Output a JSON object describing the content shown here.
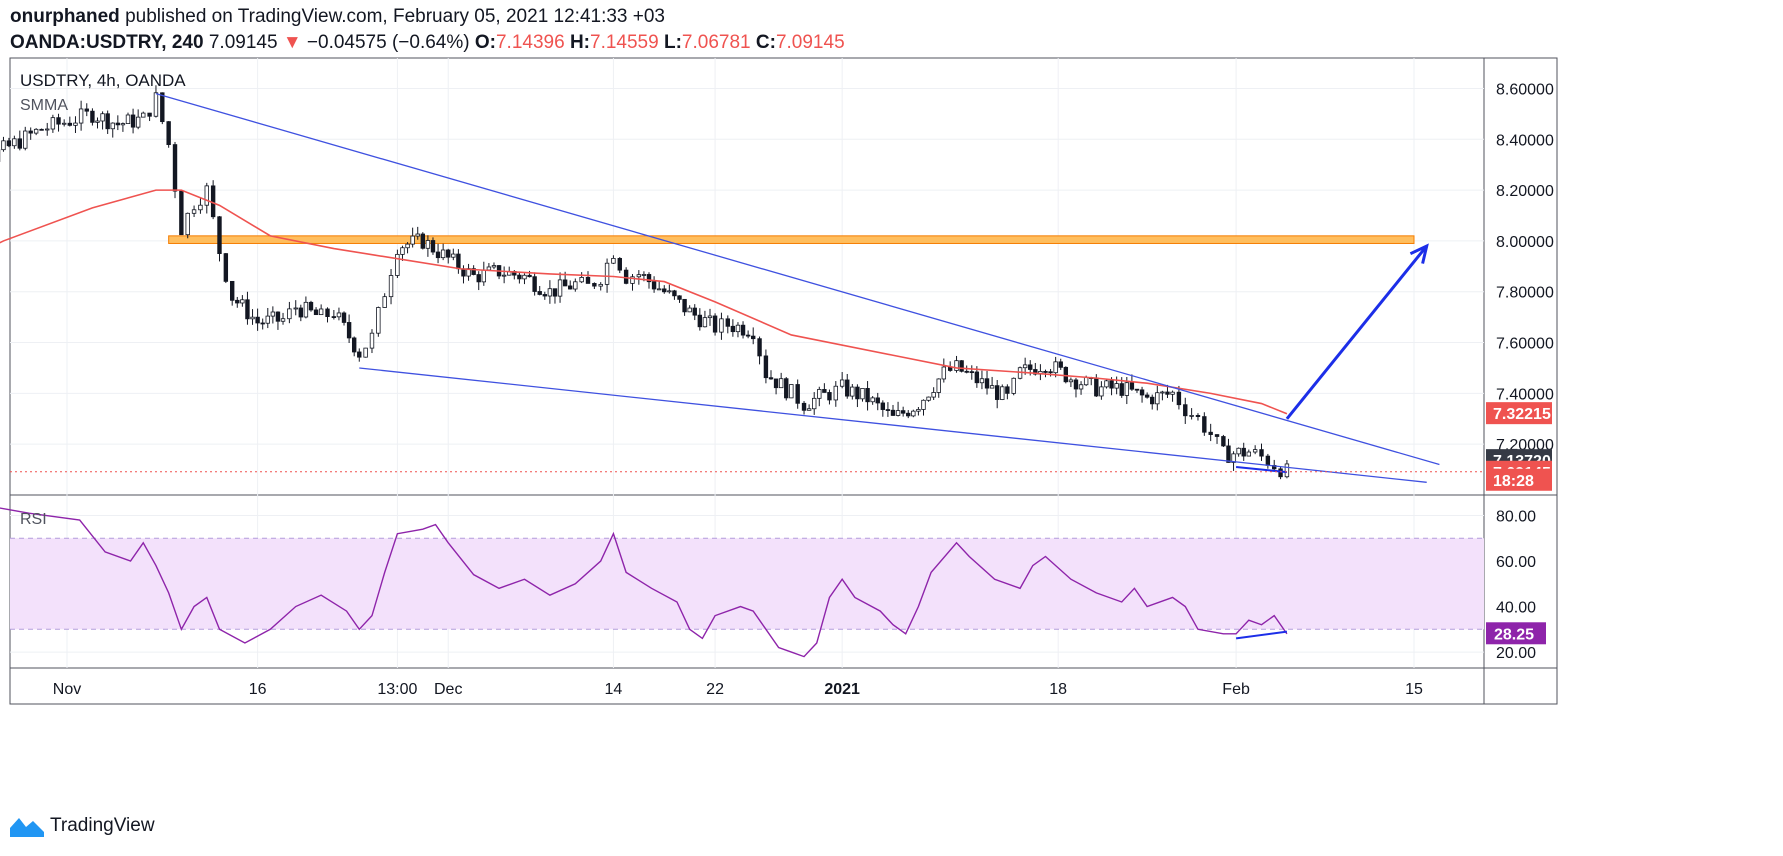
{
  "header": {
    "author": "onurphaned",
    "published_text": "published on TradingView.com, February 05, 2021 12:41:33 +03",
    "symbol": "OANDA:USDTRY, 240",
    "last": "7.09145",
    "change_arrow": "▼",
    "change": "−0.04575 (−0.64%)",
    "o_label": "O:",
    "o_value": "7.14396",
    "h_label": "H:",
    "h_value": "7.14559",
    "l_label": "L:",
    "l_value": "7.06781",
    "c_label": "C:",
    "c_value": "7.09145"
  },
  "legend": {
    "symbol_line": "USDTRY, 4h, OANDA",
    "indicator": "SMMA",
    "rsi_label": "RSI"
  },
  "footer": {
    "brand": "TradingView",
    "logo_icon": "tradingview-logo-icon"
  },
  "colors": {
    "up": "#131722",
    "down": "#131722",
    "smma": "#ef5350",
    "trendline": "#3f51e0",
    "arrow": "#1c2ee8",
    "resistance_fill": "#ffb74d",
    "resistance_border": "#f57c00",
    "rsi": "#8e24aa",
    "rsi_band": "#f3e1fb",
    "badge_red": "#ef5350",
    "badge_dark": "#363a45"
  },
  "chart_data": [
    {
      "type": "candlestick",
      "title": "USDTRY, 4h, OANDA",
      "ylim": [
        7.0,
        8.72
      ],
      "y_ticks": [
        "8.60000",
        "8.40000",
        "8.20000",
        "8.00000",
        "7.80000",
        "7.60000",
        "7.40000",
        "7.20000"
      ],
      "x_tick_labels": [
        "Nov",
        "16",
        "13:00",
        "Dec",
        "14",
        "22",
        "2021",
        "18",
        "Feb",
        "15"
      ],
      "x_tick_bold": [
        "2021"
      ],
      "price_path": [
        [
          "2020-10-22",
          8.15
        ],
        [
          "2020-10-24",
          8.27
        ],
        [
          "2020-10-27",
          8.36
        ],
        [
          "2020-10-30",
          8.44
        ],
        [
          "2020-11-03",
          8.5
        ],
        [
          "2020-11-05",
          8.46
        ],
        [
          "2020-11-07",
          8.48
        ],
        [
          "2020-11-08",
          8.56
        ],
        [
          "2020-11-09",
          8.38
        ],
        [
          "2020-11-10",
          8.05
        ],
        [
          "2020-11-11",
          8.15
        ],
        [
          "2020-11-12",
          8.2
        ],
        [
          "2020-11-13",
          7.96
        ],
        [
          "2020-11-14",
          7.78
        ],
        [
          "2020-11-16",
          7.68
        ],
        [
          "2020-11-18",
          7.69
        ],
        [
          "2020-11-19",
          7.74
        ],
        [
          "2020-11-21",
          7.7
        ],
        [
          "2020-11-22",
          7.72
        ],
        [
          "2020-11-24",
          7.56
        ],
        [
          "2020-11-25",
          7.62
        ],
        [
          "2020-11-26",
          7.8
        ],
        [
          "2020-11-27",
          7.98
        ],
        [
          "2020-11-29",
          8.0
        ],
        [
          "2020-12-01",
          7.93
        ],
        [
          "2020-12-03",
          7.86
        ],
        [
          "2020-12-05",
          7.88
        ],
        [
          "2020-12-07",
          7.86
        ],
        [
          "2020-12-09",
          7.8
        ],
        [
          "2020-12-11",
          7.83
        ],
        [
          "2020-12-12",
          7.82
        ],
        [
          "2020-12-13",
          7.86
        ],
        [
          "2020-12-14",
          7.96
        ],
        [
          "2020-12-15",
          7.86
        ],
        [
          "2020-12-16",
          7.87
        ],
        [
          "2020-12-18",
          7.8
        ],
        [
          "2020-12-20",
          7.72
        ],
        [
          "2020-12-22",
          7.66
        ],
        [
          "2020-12-23",
          7.67
        ],
        [
          "2020-12-25",
          7.65
        ],
        [
          "2020-12-26",
          7.48
        ],
        [
          "2020-12-28",
          7.4
        ],
        [
          "2020-12-29",
          7.36
        ],
        [
          "2020-12-31",
          7.4
        ],
        [
          "2021-01-01",
          7.42
        ],
        [
          "2021-01-03",
          7.38
        ],
        [
          "2021-01-05",
          7.3
        ],
        [
          "2021-01-07",
          7.36
        ],
        [
          "2021-01-09",
          7.48
        ],
        [
          "2021-01-10",
          7.5
        ],
        [
          "2021-01-12",
          7.44
        ],
        [
          "2021-01-14",
          7.38
        ],
        [
          "2021-01-15",
          7.48
        ],
        [
          "2021-01-17",
          7.52
        ],
        [
          "2021-01-19",
          7.46
        ],
        [
          "2021-01-21",
          7.42
        ],
        [
          "2021-01-23",
          7.42
        ],
        [
          "2021-01-25",
          7.38
        ],
        [
          "2021-01-27",
          7.4
        ],
        [
          "2021-01-28",
          7.34
        ],
        [
          "2021-01-29",
          7.3
        ],
        [
          "2021-01-30",
          7.24
        ],
        [
          "2021-01-31",
          7.16
        ],
        [
          "2021-02-02",
          7.17
        ],
        [
          "2021-02-03",
          7.15
        ],
        [
          "2021-02-04",
          7.12
        ],
        [
          "2021-02-05",
          7.09
        ]
      ],
      "smma": [
        [
          "2020-10-22",
          7.88
        ],
        [
          "2020-10-27",
          8.0
        ],
        [
          "2020-11-03",
          8.13
        ],
        [
          "2020-11-08",
          8.2
        ],
        [
          "2020-11-10",
          8.2
        ],
        [
          "2020-11-13",
          8.14
        ],
        [
          "2020-11-17",
          8.02
        ],
        [
          "2020-11-22",
          7.97
        ],
        [
          "2020-11-27",
          7.93
        ],
        [
          "2020-12-02",
          7.89
        ],
        [
          "2020-12-09",
          7.87
        ],
        [
          "2020-12-14",
          7.86
        ],
        [
          "2020-12-18",
          7.84
        ],
        [
          "2020-12-22",
          7.76
        ],
        [
          "2020-12-28",
          7.63
        ],
        [
          "2021-01-05",
          7.55
        ],
        [
          "2021-01-10",
          7.5
        ],
        [
          "2021-01-16",
          7.48
        ],
        [
          "2021-01-21",
          7.46
        ],
        [
          "2021-01-25",
          7.44
        ],
        [
          "2021-01-30",
          7.4
        ],
        [
          "2021-02-03",
          7.36
        ],
        [
          "2021-02-05",
          7.32
        ]
      ],
      "resistance_zone": [
        7.99,
        8.02
      ],
      "resistance_range": [
        "2020-11-09",
        "2021-02-15"
      ],
      "upper_trendline": [
        [
          "2020-11-08",
          8.58
        ],
        [
          "2021-02-17",
          7.12
        ]
      ],
      "lower_trendline": [
        [
          "2020-11-24",
          7.5
        ],
        [
          "2021-02-16",
          7.05
        ]
      ],
      "divergence_line_price": [
        [
          "2021-02-01",
          7.11
        ],
        [
          "2021-02-05",
          7.09
        ]
      ],
      "projection_arrow": [
        [
          "2021-02-05",
          7.3
        ],
        [
          "2021-02-16",
          7.98
        ]
      ],
      "last_price_line": 7.09145,
      "price_labels": [
        {
          "text": "7.32215",
          "value": 7.32215,
          "style": "red"
        },
        {
          "text": "7.13720",
          "value": 7.1372,
          "style": "dark"
        },
        {
          "text": "7.09145",
          "value": 7.09145,
          "style": "red"
        },
        {
          "text": "18:28",
          "value": 7.06,
          "style": "red"
        }
      ]
    },
    {
      "type": "line",
      "title": "RSI",
      "ylim": [
        13,
        89
      ],
      "y_ticks": [
        "80.00",
        "60.00",
        "40.00",
        "20.00"
      ],
      "band": [
        30,
        70
      ],
      "series": [
        {
          "values": [
            [
              "2020-10-22",
              87
            ],
            [
              "2020-10-25",
              85
            ],
            [
              "2020-10-29",
              81
            ],
            [
              "2020-11-02",
              78
            ],
            [
              "2020-11-04",
              64
            ],
            [
              "2020-11-06",
              60
            ],
            [
              "2020-11-07",
              68
            ],
            [
              "2020-11-08",
              58
            ],
            [
              "2020-11-09",
              46
            ],
            [
              "2020-11-10",
              30
            ],
            [
              "2020-11-11",
              40
            ],
            [
              "2020-11-12",
              44
            ],
            [
              "2020-11-13",
              30
            ],
            [
              "2020-11-15",
              24
            ],
            [
              "2020-11-17",
              30
            ],
            [
              "2020-11-19",
              40
            ],
            [
              "2020-11-21",
              45
            ],
            [
              "2020-11-23",
              38
            ],
            [
              "2020-11-24",
              30
            ],
            [
              "2020-11-25",
              36
            ],
            [
              "2020-11-26",
              55
            ],
            [
              "2020-11-27",
              72
            ],
            [
              "2020-11-29",
              74
            ],
            [
              "2020-11-30",
              76
            ],
            [
              "2020-12-01",
              68
            ],
            [
              "2020-12-03",
              54
            ],
            [
              "2020-12-05",
              48
            ],
            [
              "2020-12-07",
              52
            ],
            [
              "2020-12-09",
              45
            ],
            [
              "2020-12-11",
              50
            ],
            [
              "2020-12-13",
              60
            ],
            [
              "2020-12-14",
              72
            ],
            [
              "2020-12-15",
              55
            ],
            [
              "2020-12-17",
              48
            ],
            [
              "2020-12-19",
              42
            ],
            [
              "2020-12-20",
              30
            ],
            [
              "2020-12-21",
              26
            ],
            [
              "2020-12-22",
              36
            ],
            [
              "2020-12-24",
              40
            ],
            [
              "2020-12-25",
              38
            ],
            [
              "2020-12-26",
              30
            ],
            [
              "2020-12-27",
              22
            ],
            [
              "2020-12-28",
              20
            ],
            [
              "2020-12-29",
              18
            ],
            [
              "2020-12-30",
              24
            ],
            [
              "2020-12-31",
              44
            ],
            [
              "2021-01-01",
              52
            ],
            [
              "2021-01-02",
              44
            ],
            [
              "2021-01-04",
              38
            ],
            [
              "2021-01-05",
              32
            ],
            [
              "2021-01-06",
              28
            ],
            [
              "2021-01-07",
              40
            ],
            [
              "2021-01-08",
              55
            ],
            [
              "2021-01-10",
              68
            ],
            [
              "2021-01-11",
              62
            ],
            [
              "2021-01-13",
              52
            ],
            [
              "2021-01-15",
              48
            ],
            [
              "2021-01-16",
              58
            ],
            [
              "2021-01-17",
              62
            ],
            [
              "2021-01-19",
              52
            ],
            [
              "2021-01-21",
              46
            ],
            [
              "2021-01-23",
              42
            ],
            [
              "2021-01-24",
              48
            ],
            [
              "2021-01-25",
              40
            ],
            [
              "2021-01-27",
              44
            ],
            [
              "2021-01-28",
              40
            ],
            [
              "2021-01-29",
              30
            ],
            [
              "2021-01-31",
              28
            ],
            [
              "2021-02-01",
              28
            ],
            [
              "2021-02-02",
              34
            ],
            [
              "2021-02-03",
              32
            ],
            [
              "2021-02-04",
              36
            ],
            [
              "2021-02-05",
              28
            ]
          ]
        }
      ],
      "divergence_line": [
        [
          "2021-02-01",
          26
        ],
        [
          "2021-02-05",
          29
        ]
      ],
      "value_label": {
        "text": "28.25",
        "value": 28.25
      }
    }
  ]
}
